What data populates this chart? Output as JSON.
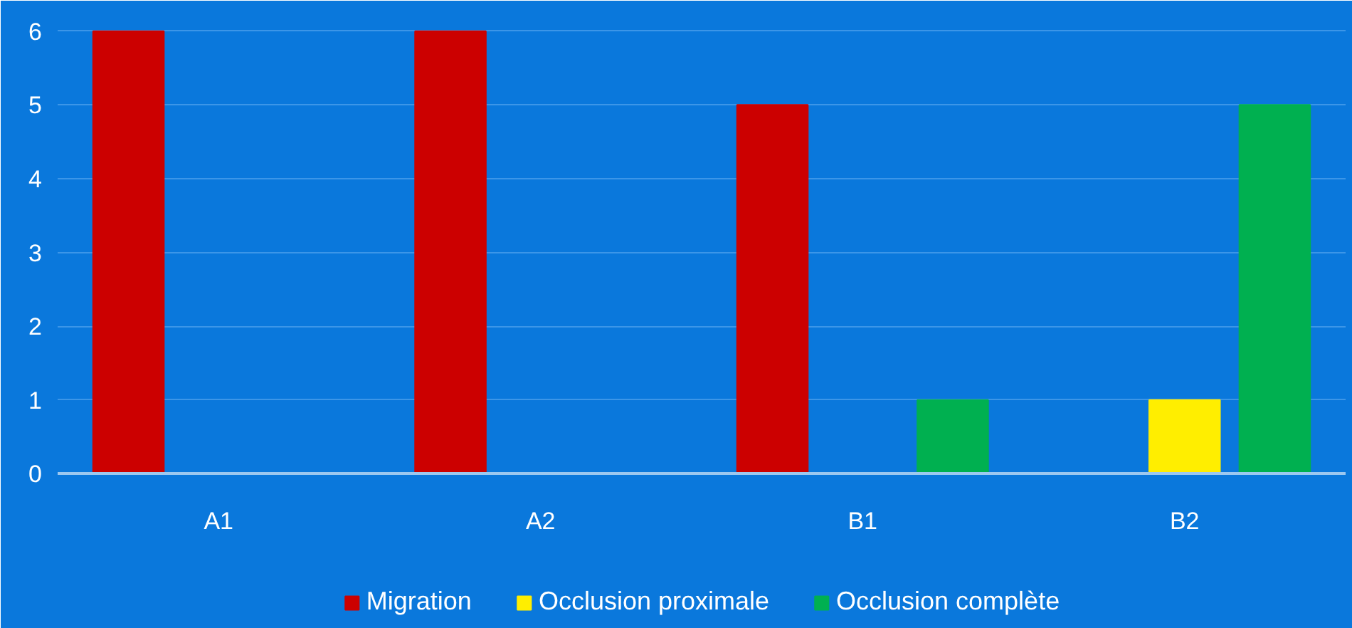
{
  "chart_data": {
    "type": "bar",
    "categories": [
      "A1",
      "A2",
      "B1",
      "B2"
    ],
    "series": [
      {
        "name": "Migration",
        "color": "#cc0000",
        "values": [
          6,
          6,
          5,
          0
        ]
      },
      {
        "name": "Occlusion proximale",
        "color": "#ffee00",
        "values": [
          0,
          0,
          0,
          1
        ]
      },
      {
        "name": "Occlusion complète",
        "color": "#00b050",
        "values": [
          0,
          0,
          1,
          5
        ]
      }
    ],
    "ylim": [
      0,
      6
    ],
    "yticks": [
      0,
      1,
      2,
      3,
      4,
      5,
      6
    ],
    "grid": "y",
    "legend": "bottom"
  }
}
